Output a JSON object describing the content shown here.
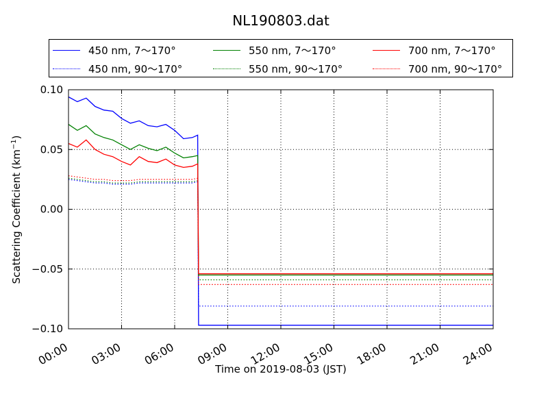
{
  "chart_data": {
    "type": "line",
    "title": "NL190803.dat",
    "xlabel": "Time on 2019-08-03 (JST)",
    "ylabel": "Scattering Coefficient (km",
    "ylabel_sup": "−1",
    "ylabel_end": ")",
    "xlim": [
      0,
      24
    ],
    "ylim": [
      -0.1,
      0.1
    ],
    "x_ticks": [
      0,
      3,
      6,
      9,
      12,
      15,
      18,
      21,
      24
    ],
    "x_tick_labels": [
      "00:00",
      "03:00",
      "06:00",
      "09:00",
      "12:00",
      "15:00",
      "18:00",
      "21:00",
      "24:00"
    ],
    "y_ticks": [
      0.1,
      0.05,
      0.0,
      -0.05,
      -0.1
    ],
    "y_tick_labels": [
      "0.10",
      "0.05",
      "0.00",
      "−0.05",
      "−0.10"
    ],
    "grid": true,
    "legend_position": "above plot, top",
    "series": [
      {
        "name": "450 nm, 7～170°",
        "color": "#0000ff",
        "style": "solid",
        "x": [
          0,
          0.5,
          1,
          1.5,
          2,
          2.5,
          3,
          3.5,
          4,
          4.5,
          5,
          5.5,
          6,
          6.5,
          7,
          7.3,
          7.35,
          8,
          12,
          18,
          24
        ],
        "y": [
          0.094,
          0.09,
          0.093,
          0.086,
          0.083,
          0.082,
          0.076,
          0.072,
          0.074,
          0.07,
          0.069,
          0.071,
          0.066,
          0.059,
          0.06,
          0.062,
          -0.097,
          -0.097,
          -0.097,
          -0.097,
          -0.097
        ]
      },
      {
        "name": "450 nm, 90～170°",
        "color": "#0000ff",
        "style": "dotted",
        "x": [
          0,
          0.5,
          1,
          1.5,
          2,
          2.5,
          3,
          3.5,
          4,
          4.5,
          5,
          5.5,
          6,
          6.5,
          7,
          7.3,
          7.35,
          8,
          12,
          18,
          24
        ],
        "y": [
          0.025,
          0.024,
          0.023,
          0.022,
          0.022,
          0.021,
          0.021,
          0.021,
          0.022,
          0.022,
          0.022,
          0.022,
          0.022,
          0.022,
          0.022,
          0.023,
          -0.081,
          -0.081,
          -0.081,
          -0.081,
          -0.081
        ]
      },
      {
        "name": "550 nm, 7～170°",
        "color": "#008000",
        "style": "solid",
        "x": [
          0,
          0.5,
          1,
          1.5,
          2,
          2.5,
          3,
          3.5,
          4,
          4.5,
          5,
          5.5,
          6,
          6.5,
          7,
          7.3,
          7.35,
          8,
          12,
          18,
          24
        ],
        "y": [
          0.071,
          0.066,
          0.07,
          0.063,
          0.06,
          0.058,
          0.054,
          0.05,
          0.054,
          0.051,
          0.049,
          0.052,
          0.047,
          0.043,
          0.044,
          0.045,
          -0.055,
          -0.055,
          -0.055,
          -0.055,
          -0.055
        ]
      },
      {
        "name": "550 nm, 90～170°",
        "color": "#008000",
        "style": "dotted",
        "x": [
          0,
          0.5,
          1,
          1.5,
          2,
          2.5,
          3,
          3.5,
          4,
          4.5,
          5,
          5.5,
          6,
          6.5,
          7,
          7.3,
          7.35,
          8,
          12,
          18,
          24
        ],
        "y": [
          0.026,
          0.025,
          0.024,
          0.023,
          0.023,
          0.022,
          0.022,
          0.022,
          0.023,
          0.023,
          0.023,
          0.023,
          0.023,
          0.023,
          0.023,
          0.024,
          -0.059,
          -0.059,
          -0.059,
          -0.059,
          -0.059
        ]
      },
      {
        "name": "700 nm, 7～170°",
        "color": "#ff0000",
        "style": "solid",
        "x": [
          0,
          0.5,
          1,
          1.5,
          2,
          2.5,
          3,
          3.5,
          4,
          4.5,
          5,
          5.5,
          6,
          6.5,
          7,
          7.3,
          7.35,
          8,
          12,
          18,
          24
        ],
        "y": [
          0.055,
          0.052,
          0.058,
          0.05,
          0.046,
          0.044,
          0.04,
          0.037,
          0.044,
          0.04,
          0.039,
          0.042,
          0.037,
          0.035,
          0.036,
          0.038,
          -0.054,
          -0.054,
          -0.054,
          -0.054,
          -0.054
        ]
      },
      {
        "name": "700 nm, 90～170°",
        "color": "#ff0000",
        "style": "dotted",
        "x": [
          0,
          0.5,
          1,
          1.5,
          2,
          2.5,
          3,
          3.5,
          4,
          4.5,
          5,
          5.5,
          6,
          6.5,
          7,
          7.3,
          7.35,
          8,
          12,
          18,
          24
        ],
        "y": [
          0.028,
          0.027,
          0.026,
          0.025,
          0.025,
          0.024,
          0.024,
          0.024,
          0.025,
          0.025,
          0.025,
          0.025,
          0.025,
          0.025,
          0.025,
          0.026,
          -0.063,
          -0.063,
          -0.063,
          -0.063,
          -0.063
        ]
      }
    ]
  }
}
